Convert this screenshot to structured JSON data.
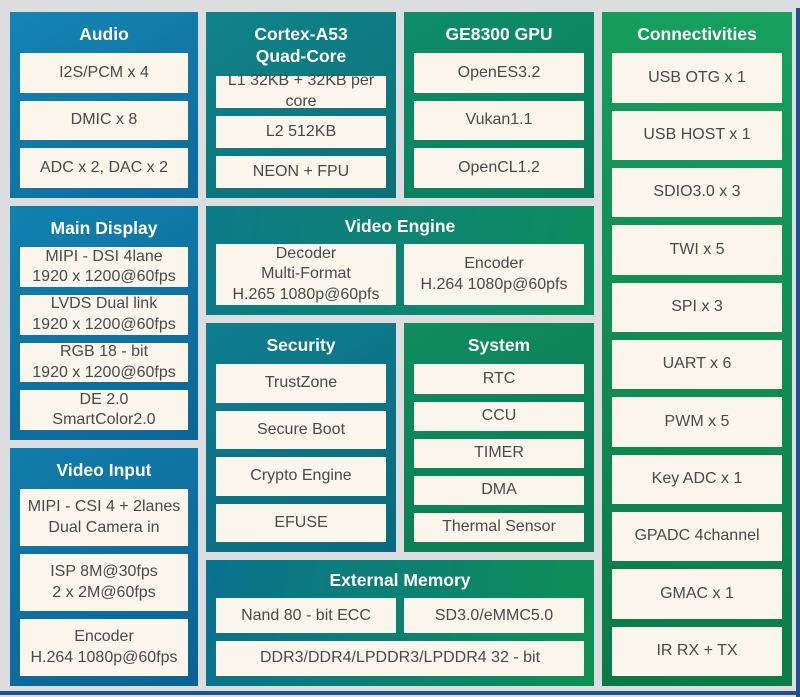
{
  "page": {
    "background": "#dcddde",
    "item_bg": "#faf6ec",
    "item_text": "#4a4a4a",
    "title_text": "#ffffff",
    "frame_color": "#1d5290"
  },
  "blocks": {
    "audio": {
      "title": "Audio",
      "theme": {
        "angle": 150,
        "from": "#1585b3",
        "to": "#0d6a9b"
      },
      "items": [
        "I2S/PCM x 4",
        "DMIC x 8",
        "ADC x 2, DAC x 2"
      ]
    },
    "cortex": {
      "title": "Cortex-A53\nQuad-Core",
      "theme": {
        "angle": 150,
        "from": "#10838a",
        "to": "#0b7076"
      },
      "items": [
        "L1 32KB + 32KB per core",
        "L2 512KB",
        "NEON + FPU"
      ]
    },
    "gpu": {
      "title": "GE8300 GPU",
      "theme": {
        "angle": 150,
        "from": "#0f8d68",
        "to": "#0b7d5b"
      },
      "items": [
        "OpenES3.2",
        "Vukan1.1",
        "OpenCL1.2"
      ]
    },
    "connectivities": {
      "title": "Connectivities",
      "theme": {
        "angle": 195,
        "from": "#17a05e",
        "to": "#0a7a46"
      },
      "items": [
        "USB OTG x 1",
        "USB HOST x 1",
        "SDIO3.0 x 3",
        "TWI x 5",
        "SPI x 3",
        "UART x 6",
        "PWM x 5",
        "Key ADC x 1",
        "GPADC 4channel",
        "GMAC x 1",
        "IR RX + TX"
      ]
    },
    "main_display": {
      "title": "Main Display",
      "theme": {
        "angle": 150,
        "from": "#1181ae",
        "to": "#0c6697"
      },
      "items": [
        "MIPI - DSI 4lane\n1920 x 1200@60fps",
        "LVDS Dual link\n1920 x 1200@60fps",
        "RGB 18 - bit\n1920 x 1200@60fps",
        "DE 2.0\nSmartColor2.0"
      ]
    },
    "video_engine": {
      "title": "Video Engine",
      "theme": {
        "angle": 100,
        "from": "#0d7a88",
        "to": "#0e8d5d"
      },
      "items": [
        "Decoder\nMulti-Format\nH.265 1080p@60pfs",
        "Encoder\nH.264 1080p@60pfs"
      ]
    },
    "security": {
      "title": "Security",
      "theme": {
        "angle": 150,
        "from": "#0e7e8e",
        "to": "#096a7f"
      },
      "items": [
        "TrustZone",
        "Secure Boot",
        "Crypto Engine",
        "EFUSE"
      ]
    },
    "system": {
      "title": "System",
      "theme": {
        "angle": 150,
        "from": "#0f8c60",
        "to": "#0a7b52"
      },
      "items": [
        "RTC",
        "CCU",
        "TIMER",
        "DMA",
        "Thermal Sensor"
      ]
    },
    "video_input": {
      "title": "Video Input",
      "theme": {
        "angle": 150,
        "from": "#107dab",
        "to": "#0b6294"
      },
      "items": [
        "MIPI - CSI 4 + 2lanes\nDual Camera in",
        "ISP 8M@30fps\n2 x 2M@60fps",
        "Encoder\nH.264 1080p@60fps"
      ]
    },
    "external_memory": {
      "title": "External Memory",
      "theme": {
        "angle": 100,
        "from": "#0b7190",
        "to": "#0e9052"
      },
      "items": [
        "Nand 80 - bit ECC",
        "SD3.0/eMMC5.0",
        "DDR3/DDR4/LPDDR3/LPDDR4 32 - bit"
      ]
    }
  }
}
